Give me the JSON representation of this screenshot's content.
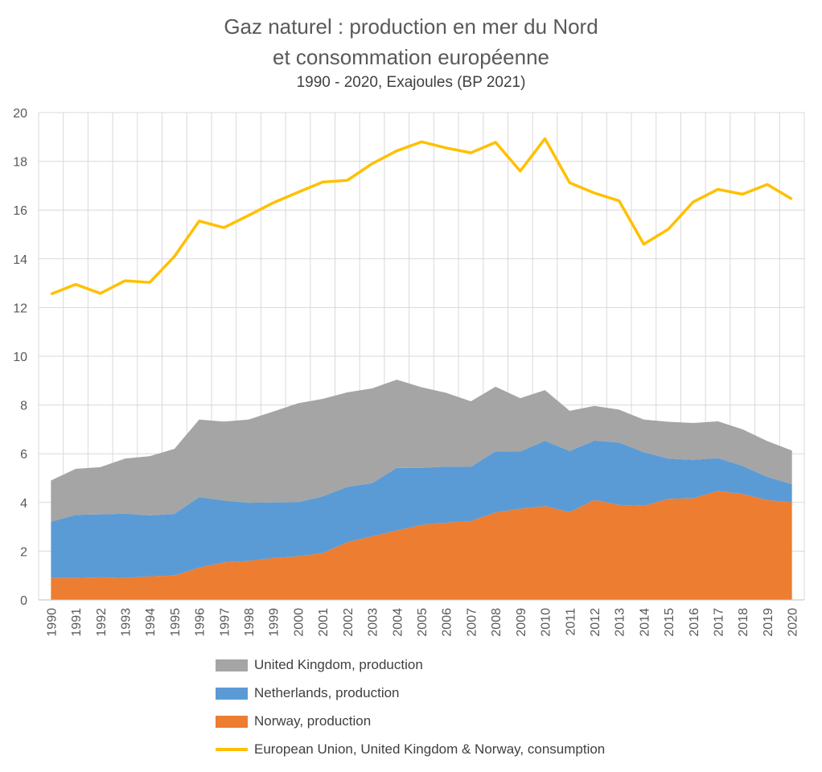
{
  "chart_data": {
    "type": "area",
    "title": "Gaz naturel : production en mer du Nord",
    "title_line2": "et consommation européenne",
    "subtitle": "1990 - 2020, Exajoules (BP 2021)",
    "xlabel": "",
    "ylabel": "",
    "ylim": [
      0,
      20
    ],
    "yticks": [
      "0",
      "2",
      "4",
      "6",
      "8",
      "10",
      "12",
      "14",
      "16",
      "18",
      "20"
    ],
    "grid": true,
    "legend_position": "bottom",
    "categories": [
      "1990",
      "1991",
      "1992",
      "1993",
      "1994",
      "1995",
      "1996",
      "1997",
      "1998",
      "1999",
      "2000",
      "2001",
      "2002",
      "2003",
      "2004",
      "2005",
      "2006",
      "2007",
      "2008",
      "2009",
      "2010",
      "2011",
      "2012",
      "2013",
      "2014",
      "2015",
      "2016",
      "2017",
      "2018",
      "2019",
      "2020"
    ],
    "stacked_series": [
      {
        "name": "Norway, production",
        "color": "#ED7D31",
        "values": [
          0.9,
          0.9,
          0.93,
          0.9,
          0.97,
          1.0,
          1.33,
          1.54,
          1.6,
          1.72,
          1.79,
          1.92,
          2.37,
          2.61,
          2.85,
          3.08,
          3.17,
          3.24,
          3.59,
          3.74,
          3.85,
          3.6,
          4.1,
          3.9,
          3.86,
          4.15,
          4.17,
          4.47,
          4.35,
          4.1,
          4.0
        ]
      },
      {
        "name": "Netherlands, production",
        "color": "#5B9BD5",
        "values": [
          2.31,
          2.59,
          2.58,
          2.64,
          2.5,
          2.53,
          2.89,
          2.54,
          2.39,
          2.28,
          2.22,
          2.33,
          2.27,
          2.18,
          2.57,
          2.34,
          2.3,
          2.22,
          2.51,
          2.35,
          2.68,
          2.51,
          2.44,
          2.56,
          2.2,
          1.65,
          1.58,
          1.35,
          1.15,
          0.95,
          0.75
        ]
      },
      {
        "name": "United Kingdom, production",
        "color": "#A5A5A5",
        "values": [
          1.69,
          1.89,
          1.94,
          2.26,
          2.43,
          2.67,
          3.18,
          3.24,
          3.41,
          3.73,
          4.06,
          4.0,
          3.88,
          3.89,
          3.62,
          3.31,
          3.03,
          2.69,
          2.65,
          2.19,
          2.08,
          1.65,
          1.42,
          1.35,
          1.34,
          1.51,
          1.51,
          1.51,
          1.5,
          1.47,
          1.38
        ]
      }
    ],
    "line_series": [
      {
        "name": "European Union, United Kingdom & Norway, consumption",
        "color": "#FFC000",
        "values": [
          12.55,
          12.95,
          12.58,
          13.1,
          13.03,
          14.1,
          15.55,
          15.28,
          15.78,
          16.3,
          16.73,
          17.15,
          17.22,
          17.9,
          18.43,
          18.8,
          18.55,
          18.35,
          18.78,
          17.6,
          18.93,
          17.12,
          16.7,
          16.38,
          14.6,
          15.22,
          16.33,
          16.85,
          16.65,
          17.05,
          16.45
        ]
      }
    ],
    "legend": [
      {
        "label": "United Kingdom, production",
        "color": "#A5A5A5",
        "kind": "area"
      },
      {
        "label": "Netherlands, production",
        "color": "#5B9BD5",
        "kind": "area"
      },
      {
        "label": "Norway, production",
        "color": "#ED7D31",
        "kind": "area"
      },
      {
        "label": "European Union, United Kingdom & Norway, consumption",
        "color": "#FFC000",
        "kind": "line"
      }
    ]
  }
}
